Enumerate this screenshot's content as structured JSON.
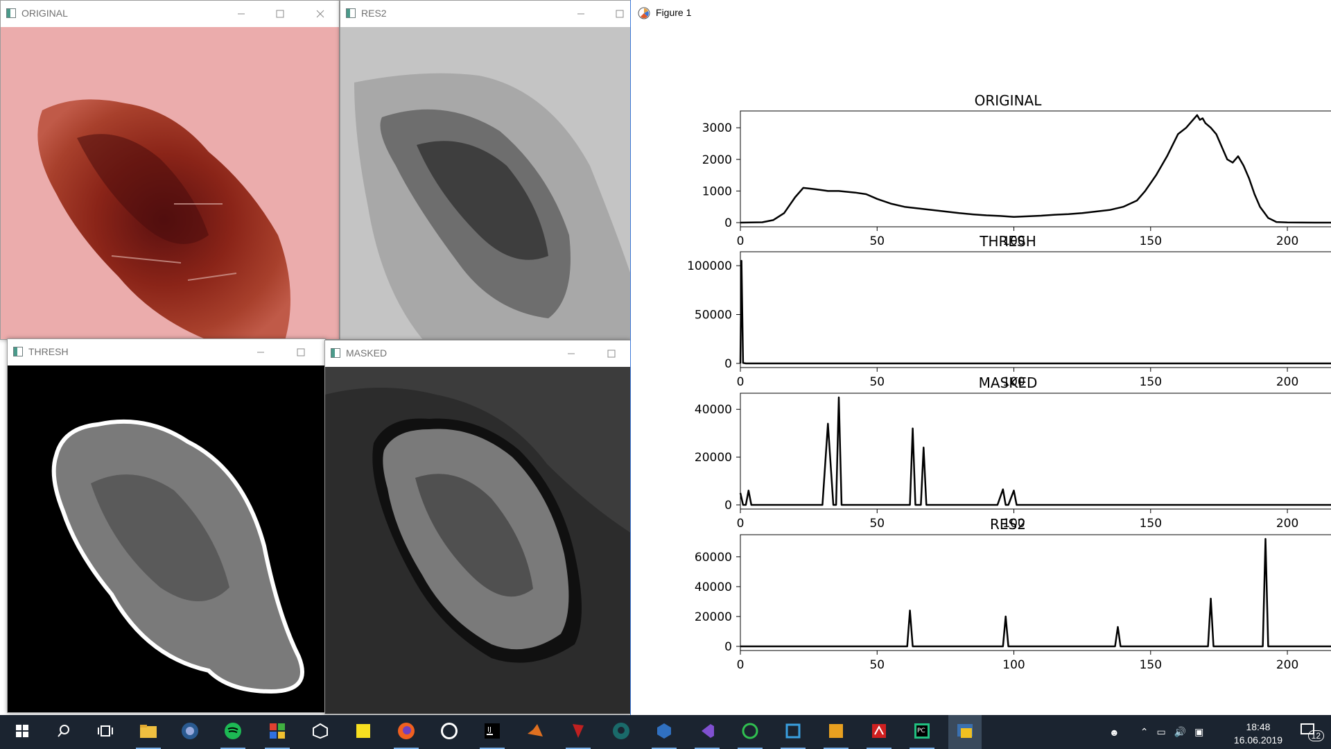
{
  "windows": {
    "original": {
      "title": "ORIGINAL"
    },
    "res2": {
      "title": "RES2"
    },
    "thresh": {
      "title": "THRESH"
    },
    "masked": {
      "title": "MASKED"
    },
    "figure": {
      "title": "Figure 1"
    }
  },
  "chart_data": [
    {
      "type": "line",
      "title": "ORIGINAL",
      "xlim": [
        0,
        256
      ],
      "ylim": [
        0,
        3400
      ],
      "xticks": [
        0,
        50,
        100,
        150,
        200
      ],
      "yticks": [
        0,
        1000,
        2000,
        3000
      ],
      "ytick_labels": [
        "0",
        "1000",
        "2000",
        "3000"
      ],
      "series": [
        {
          "color": "#000000",
          "x": [
            0,
            8,
            12,
            16,
            20,
            23,
            25,
            28,
            32,
            36,
            42,
            46,
            50,
            55,
            60,
            65,
            70,
            75,
            80,
            85,
            90,
            95,
            100,
            105,
            110,
            115,
            120,
            125,
            130,
            135,
            140,
            145,
            148,
            152,
            156,
            160,
            163,
            165,
            167,
            168,
            169,
            170,
            172,
            174,
            176,
            178,
            180,
            182,
            184,
            186,
            188,
            190,
            193,
            196,
            200,
            210,
            230,
            256
          ],
          "y": [
            0,
            10,
            80,
            300,
            800,
            1100,
            1080,
            1050,
            1000,
            1000,
            950,
            900,
            750,
            600,
            500,
            450,
            400,
            350,
            300,
            260,
            230,
            210,
            180,
            200,
            220,
            250,
            270,
            300,
            350,
            400,
            500,
            700,
            1000,
            1500,
            2100,
            2800,
            3000,
            3200,
            3400,
            3250,
            3300,
            3150,
            3000,
            2800,
            2400,
            2000,
            1900,
            2100,
            1800,
            1400,
            900,
            500,
            150,
            20,
            5,
            0,
            0,
            0
          ]
        }
      ]
    },
    {
      "type": "line",
      "title": "THRESH",
      "xlim": [
        0,
        256
      ],
      "ylim": [
        0,
        110000
      ],
      "xticks": [
        0,
        50,
        100,
        150,
        200
      ],
      "yticks": [
        0,
        50000,
        100000
      ],
      "ytick_labels": [
        "0",
        "50000",
        "100000"
      ],
      "series": [
        {
          "color": "#000000",
          "x": [
            0,
            0.4,
            1,
            2,
            256
          ],
          "y": [
            0,
            105000,
            500,
            0,
            0
          ]
        }
      ]
    },
    {
      "type": "line",
      "title": "MASKED",
      "xlim": [
        0,
        256
      ],
      "ylim": [
        0,
        45000
      ],
      "xticks": [
        0,
        50,
        100,
        150,
        200
      ],
      "yticks": [
        0,
        20000,
        40000
      ],
      "ytick_labels": [
        "0",
        "20000",
        "40000"
      ],
      "series": [
        {
          "color": "#000000",
          "x": [
            0,
            1,
            2,
            3,
            4,
            5,
            30,
            32,
            34,
            35,
            36,
            37,
            62,
            63,
            64,
            66,
            67,
            68,
            94,
            96,
            97,
            98,
            100,
            101,
            102,
            256
          ],
          "y": [
            5000,
            0,
            0,
            6000,
            0,
            0,
            0,
            34000,
            0,
            0,
            45000,
            0,
            0,
            32000,
            0,
            0,
            24000,
            0,
            0,
            6500,
            0,
            0,
            6000,
            0,
            0,
            0
          ]
        }
      ]
    },
    {
      "type": "line",
      "title": "RES2",
      "xlim": [
        0,
        256
      ],
      "ylim": [
        0,
        72000
      ],
      "xticks": [
        0,
        50,
        100,
        150,
        200
      ],
      "yticks": [
        0,
        20000,
        40000,
        60000
      ],
      "ytick_labels": [
        "0",
        "20000",
        "40000",
        "60000"
      ],
      "series": [
        {
          "color": "#000000",
          "x": [
            0,
            61,
            62,
            63,
            96,
            97,
            98,
            137,
            138,
            139,
            171,
            172,
            173,
            191,
            192,
            193,
            256
          ],
          "y": [
            0,
            0,
            24000,
            0,
            0,
            20000,
            0,
            0,
            13000,
            0,
            0,
            32000,
            0,
            0,
            72000,
            0,
            0
          ]
        }
      ]
    }
  ],
  "taskbar": {
    "icons": [
      "windows-start-icon",
      "search-icon",
      "task-view-icon",
      "file-explorer-icon",
      "headset-app-icon",
      "spotify-icon",
      "tiles-app-icon",
      "unity-icon",
      "sticky-notes-icon",
      "firefox-icon",
      "unreal-engine-icon",
      "intellij-icon",
      "matlab-icon",
      "jedi-app-icon",
      "gitkraken-icon",
      "virtualbox-icon",
      "visual-studio-icon",
      "refresh-app-icon",
      "azure-ds-icon",
      "xampp-icon",
      "acrobat-icon",
      "pycharm-icon",
      "python-icon"
    ],
    "time": "18:48",
    "date": "16.06.2019",
    "notifications": "12"
  },
  "colors": {
    "taskbar_bg": "#1b2430",
    "accent": "#3b78d8"
  }
}
